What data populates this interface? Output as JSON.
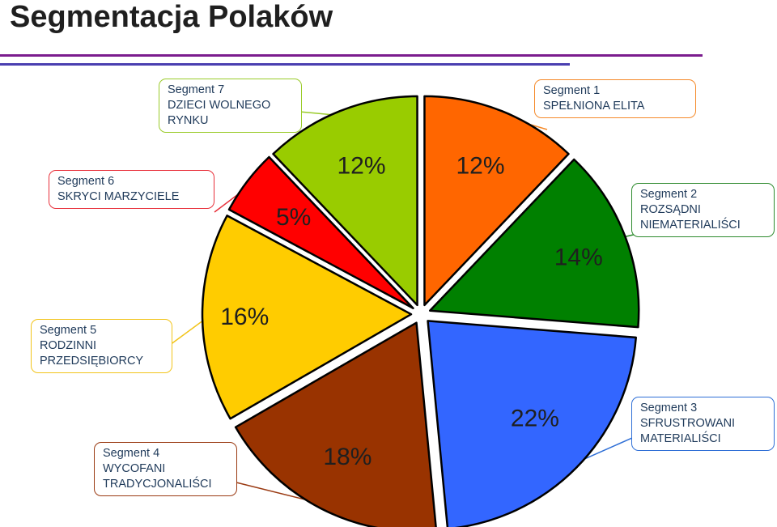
{
  "title": "Segmentacja Polaków",
  "chart_data": {
    "type": "pie",
    "title": "Segmentacja Polaków",
    "slices": [
      {
        "segment": "Segment 1",
        "name": "SPEŁNIONA ELITA",
        "value": 12,
        "label": "12%",
        "color": "#ff6600"
      },
      {
        "segment": "Segment 2",
        "name": "ROZSĄDNI NIEMATERIALIŚCI",
        "value": 14,
        "label": "14%",
        "color": "#008000"
      },
      {
        "segment": "Segment 3",
        "name": "SFRUSTROWANI MATERIALIŚCI",
        "value": 22,
        "label": "22%",
        "color": "#3366ff"
      },
      {
        "segment": "Segment 4",
        "name": "WYCOFANI TRADYCJONALIŚCI",
        "value": 18,
        "label": "18%",
        "color": "#993300"
      },
      {
        "segment": "Segment 5",
        "name": "RODZINNI PRZEDSIĘBIORCY",
        "value": 16,
        "label": "16%",
        "color": "#ffcc00"
      },
      {
        "segment": "Segment 6",
        "name": "SKRYCI MARZYCIELE",
        "value": 5,
        "label": "5%",
        "color": "#ff0000"
      },
      {
        "segment": "Segment 7",
        "name": "DZIECI WOLNEGO RYNKU",
        "value": 12,
        "label": "12%",
        "color": "#99cc00"
      }
    ]
  },
  "callouts": [
    {
      "line1": "Segment 1",
      "line2": "SPEŁNIONA ELITA",
      "line3": "",
      "border": "#f58a2a"
    },
    {
      "line1": "Segment 2",
      "line2": "ROZSĄDNI",
      "line3": "NIEMATERIALIŚCI",
      "border": "#2e8b2e"
    },
    {
      "line1": "Segment 3",
      "line2": "SFRUSTROWANI",
      "line3": "MATERIALIŚCI",
      "border": "#2f6fd6"
    },
    {
      "line1": "Segment 4",
      "line2": "WYCOFANI",
      "line3": "TRADYCJONALIŚCI",
      "border": "#9a3a12"
    },
    {
      "line1": "Segment 5",
      "line2": "RODZINNI",
      "line3": "PRZEDSIĘBIORCY",
      "border": "#f2c41a"
    },
    {
      "line1": "Segment 6",
      "line2": "SKRYCI MARZYCIELE",
      "line3": "",
      "border": "#e8303a"
    },
    {
      "line1": "Segment 7",
      "line2": "DZIECI WOLNEGO",
      "line3": "RYNKU",
      "border": "#9acb2a"
    }
  ]
}
